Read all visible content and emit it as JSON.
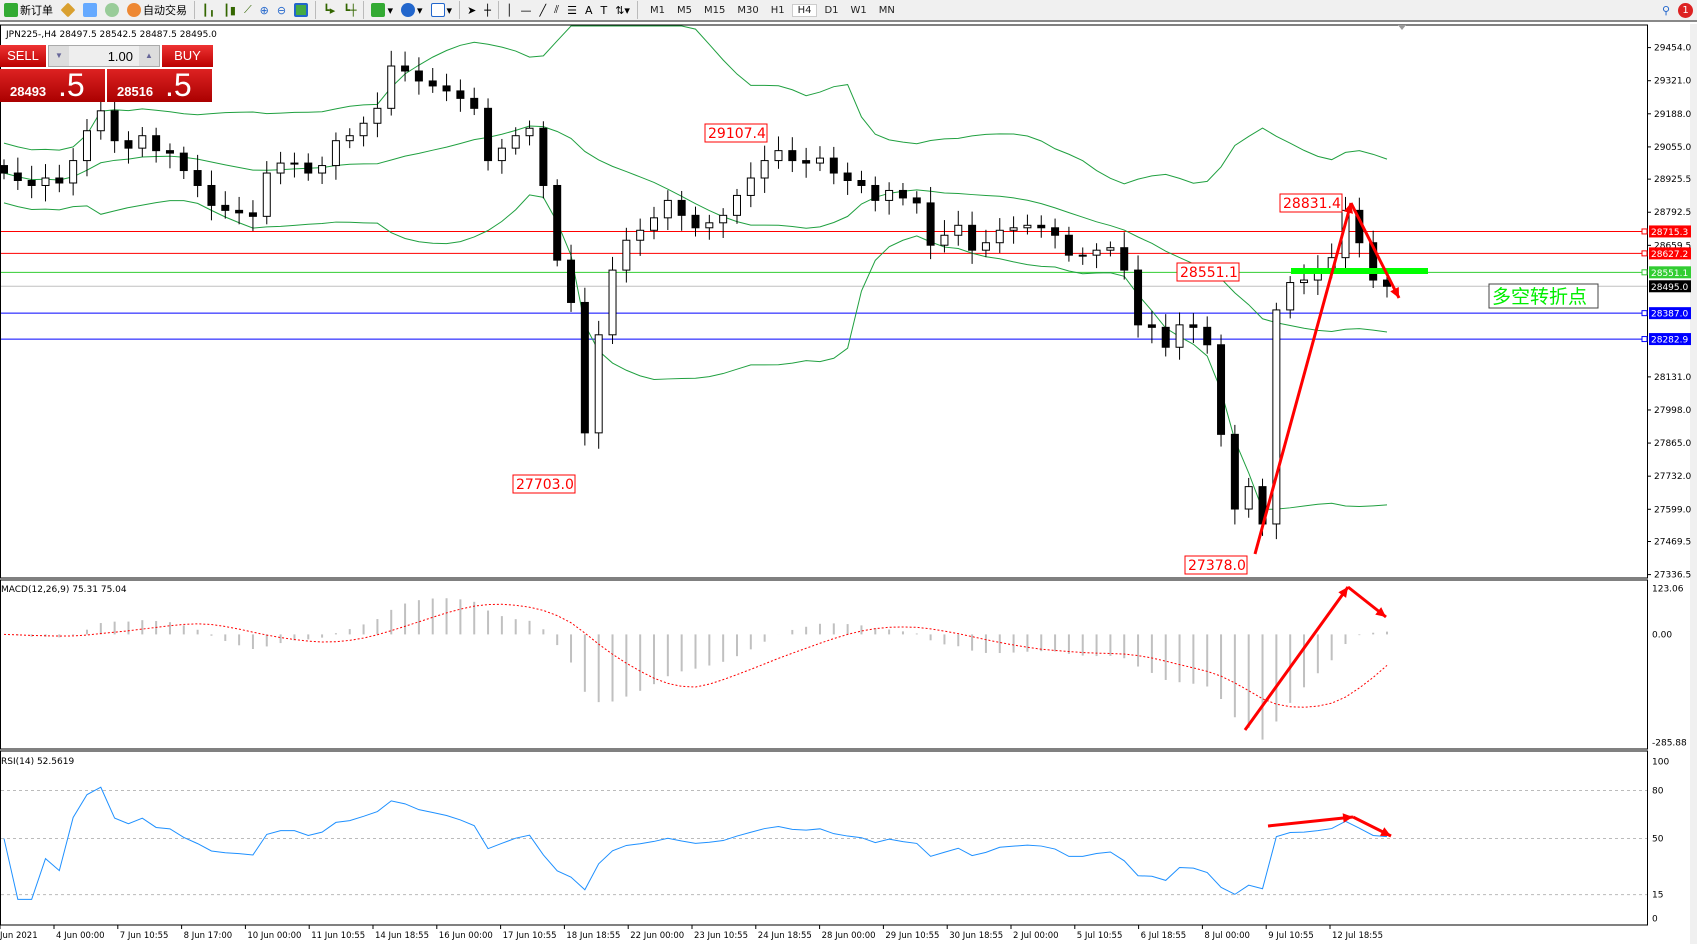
{
  "toolbar": {
    "new_order": "新订单",
    "auto_trading": "自动交易",
    "timeframes": [
      "M1",
      "M5",
      "M15",
      "M30",
      "H1",
      "H4",
      "D1",
      "W1",
      "MN"
    ],
    "active_timeframe": "H4",
    "notification_count": "1"
  },
  "chart_header": "JPN225-,H4  28497.5 28542.5 28487.5 28495.0",
  "trade_panel": {
    "sell_label": "SELL",
    "buy_label": "BUY",
    "lot": "1.00",
    "sell_price_main": "28493",
    "sell_price_big": ".5",
    "buy_price_main": "28516",
    "buy_price_big": ".5"
  },
  "chart_data": {
    "type": "candlestick",
    "symbol": "JPN225-",
    "timeframe": "H4",
    "closes": [
      28950,
      28920,
      28900,
      28930,
      28910,
      29000,
      29120,
      29200,
      29080,
      29050,
      29100,
      29040,
      29030,
      28960,
      28900,
      28820,
      28800,
      28790,
      28776,
      28950,
      28990,
      28990,
      28950,
      28980,
      29080,
      29100,
      29150,
      29210,
      29380,
      29360,
      29320,
      29300,
      29280,
      29250,
      29210,
      29000,
      29050,
      29100,
      29130,
      28900,
      28600,
      28430,
      27906,
      28300,
      28560,
      28680,
      28720,
      28770,
      28840,
      28780,
      28730,
      28750,
      28780,
      28860,
      28930,
      29000,
      29040,
      29000,
      28990,
      29010,
      28950,
      28920,
      28900,
      28840,
      28880,
      28850,
      28830,
      28660,
      28700,
      28740,
      28640,
      28670,
      28720,
      28730,
      28740,
      28730,
      28700,
      28620,
      28620,
      28640,
      28650,
      28560,
      28340,
      28330,
      28250,
      28340,
      28330,
      28260,
      27900,
      27600,
      27690,
      27540,
      28400,
      28510,
      28520,
      28560,
      28610,
      28800,
      28670,
      28520,
      28495
    ],
    "price_axis": [
      "29454.0",
      "29321.0",
      "29188.0",
      "29055.0",
      "28925.5",
      "28792.5",
      "28659.5",
      "28131.0",
      "27998.0",
      "27865.0",
      "27732.0",
      "27599.0",
      "27469.5",
      "27336.5"
    ],
    "price_range": [
      27336.5,
      29454.0
    ],
    "time_axis": [
      "Jun 2021",
      "4 Jun 00:00",
      "7 Jun 10:55",
      "8 Jun 17:00",
      "10 Jun 00:00",
      "11 Jun 10:55",
      "14 Jun 18:55",
      "16 Jun 00:00",
      "17 Jun 10:55",
      "18 Jun 18:55",
      "22 Jun 00:00",
      "23 Jun 10:55",
      "24 Jun 18:55",
      "28 Jun 00:00",
      "29 Jun 10:55",
      "30 Jun 18:55",
      "2 Jul 00:00",
      "5 Jul 10:55",
      "6 Jul 18:55",
      "8 Jul 00:00",
      "9 Jul 10:55",
      "12 Jul 18:55"
    ],
    "bollinger_bands": true,
    "horizontal_lines": [
      {
        "price": "28715.3",
        "color": "#ff0000"
      },
      {
        "price": "28627.2",
        "color": "#ff0000"
      },
      {
        "price": "28551.1",
        "color": "#32cd32"
      },
      {
        "price": "28495.0",
        "color": "#000000",
        "line_color": "#c0c0c0"
      },
      {
        "price": "28387.0",
        "color": "#0000ff"
      },
      {
        "price": "28282.9",
        "color": "#0000ff"
      }
    ],
    "price_labels": [
      "29107.4",
      "27703.0",
      "28551.1",
      "28831.4",
      "27378.0"
    ],
    "annotation_text": "多空转折点",
    "macd": {
      "label": "MACD(12,26,9) 75.31 75.04",
      "axis": [
        "123.06",
        "0.00",
        "-285.88"
      ],
      "range": [
        -285.88,
        123.06
      ]
    },
    "rsi": {
      "label": "RSI(14) 52.5619",
      "axis": [
        "100",
        "80",
        "50",
        "15",
        "0"
      ],
      "levels": [
        80,
        50,
        15
      ]
    }
  },
  "colors": {
    "bands": "#20a040",
    "rsi": "#1e90ff",
    "signal": "#ff0000",
    "arrows": "#ff0000",
    "pivot": "#00ff00"
  }
}
